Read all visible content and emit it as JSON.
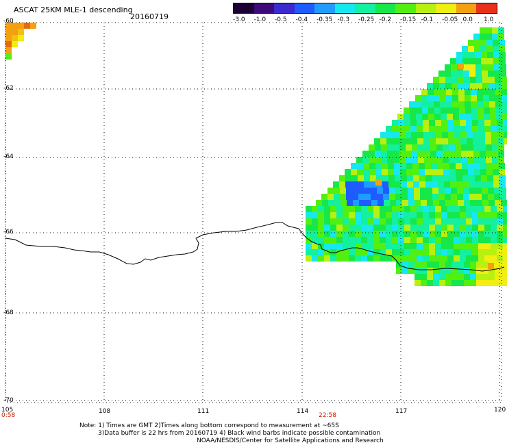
{
  "header": {
    "title": "ASCAT 25KM MLE-1 descending",
    "date": "20160719"
  },
  "colorbar": {
    "labels": [
      "-3.0",
      "-1.0",
      "-0.5",
      "-0.4",
      "-0.35",
      "-0.3",
      "-0.25",
      "-0.2",
      "-0.15",
      "-0.1",
      "-0.05",
      "0.0",
      "1.0"
    ],
    "colors": [
      "#1a0033",
      "#3d0a7a",
      "#3a2ad0",
      "#1f5cff",
      "#1f9cff",
      "#16e8ef",
      "#12f0a0",
      "#16e84a",
      "#52f010",
      "#b8f010",
      "#f0ef10",
      "#f5a010",
      "#e8301a"
    ]
  },
  "map": {
    "lon_range": [
      105,
      120
    ],
    "lat_range": [
      -70,
      -60
    ],
    "lon_ticks": [
      "105",
      "108",
      "111",
      "114",
      "117",
      "120"
    ],
    "lat_ticks": [
      "-60",
      "-62",
      "-64",
      "-66",
      "-68",
      "-70"
    ],
    "times": [
      {
        "lon": 105,
        "label": "0:58"
      },
      {
        "lon": 114.6,
        "label": "22:58"
      }
    ]
  },
  "footer": {
    "line1": "Note: 1) Times are GMT 2)Times along bottom correspond to measurement at ~65S",
    "line2": "3)Data buffer is 22 hrs from 20160719 4) Black wind barbs indicate possible contamination",
    "line3": "NOAA/NESDIS/Center for Satellite Applications and Research"
  }
}
